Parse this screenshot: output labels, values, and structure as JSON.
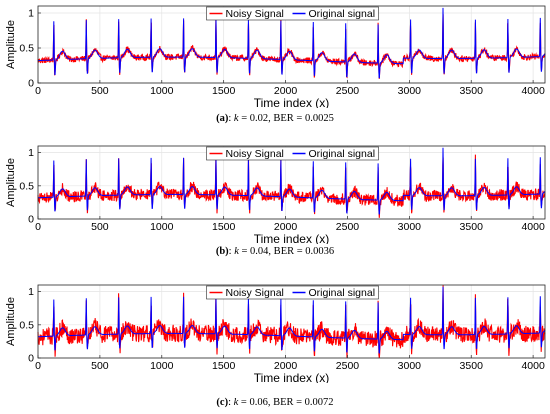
{
  "chart_data": [
    {
      "type": "line",
      "panel": "a",
      "caption": {
        "letter": "(a)",
        "sep": ": ",
        "kvar": "k",
        "text": " = 0.02, BER = 0.0025"
      },
      "xlabel": "Time index (x)",
      "ylabel": "Amplitude",
      "xlim": [
        0,
        4096
      ],
      "ylim": [
        0,
        1.1
      ],
      "xticks": [
        0,
        500,
        1000,
        1500,
        2000,
        2500,
        3000,
        3500,
        4000
      ],
      "yticks": [
        0,
        0.5,
        1
      ],
      "ytick_labels": [
        "0",
        "0.5",
        "1"
      ],
      "grid": true,
      "legend": "top-center",
      "series": [
        {
          "name": "Noisy Signal",
          "color": "#ff0000",
          "noise": 0.02
        },
        {
          "name": "Original signal",
          "color": "#0000ff"
        }
      ]
    },
    {
      "type": "line",
      "panel": "b",
      "caption": {
        "letter": "(b)",
        "sep": ": ",
        "kvar": "k",
        "text": " = 0.04, BER = 0.0036"
      },
      "xlabel": "Time index (x)",
      "ylabel": "Amplitude",
      "xlim": [
        0,
        4096
      ],
      "ylim": [
        0,
        1.1
      ],
      "xticks": [
        0,
        500,
        1000,
        1500,
        2000,
        2500,
        3000,
        3500,
        4000
      ],
      "yticks": [
        0,
        0.5,
        1
      ],
      "ytick_labels": [
        "0",
        "0.5",
        "1"
      ],
      "grid": true,
      "legend": "top-center",
      "series": [
        {
          "name": "Noisy Signal",
          "color": "#ff0000",
          "noise": 0.04
        },
        {
          "name": "Original signal",
          "color": "#0000ff"
        }
      ]
    },
    {
      "type": "line",
      "panel": "c",
      "caption": {
        "letter": "(c)",
        "sep": ": ",
        "kvar": "k",
        "text": " = 0.06, BER = 0.0072"
      },
      "xlabel": "Time index (x)",
      "ylabel": "Amplitude",
      "xlim": [
        0,
        4096
      ],
      "ylim": [
        0,
        1.1
      ],
      "xticks": [
        0,
        500,
        1000,
        1500,
        2000,
        2500,
        3000,
        3500,
        4000
      ],
      "yticks": [
        0,
        0.5,
        1
      ],
      "ytick_labels": [
        "0",
        "0.5",
        "1"
      ],
      "grid": true,
      "legend": "top-center",
      "series": [
        {
          "name": "Noisy Signal",
          "color": "#ff0000",
          "noise": 0.06
        },
        {
          "name": "Original signal",
          "color": "#0000ff"
        }
      ]
    }
  ],
  "signal_model": {
    "beat_period": 262,
    "first_peak": 128,
    "peak_height": 0.88,
    "baseline": 0.32,
    "tall_peak_at": 3380,
    "tall_peak_height": 1.05
  }
}
